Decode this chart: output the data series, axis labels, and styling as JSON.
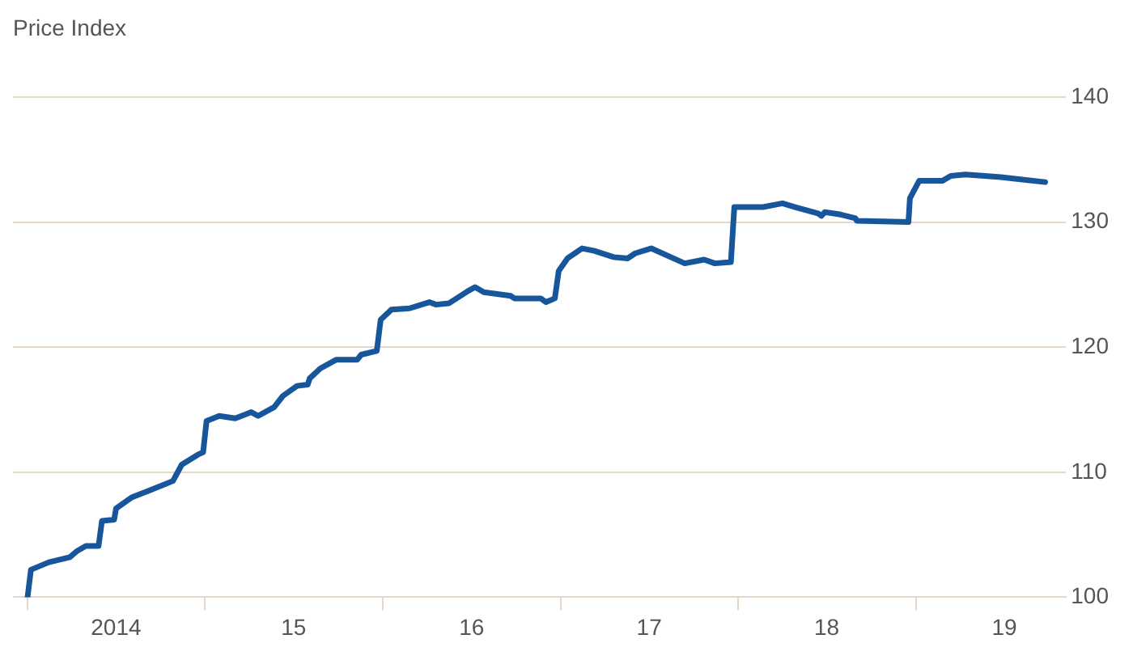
{
  "chart_data": {
    "type": "line",
    "title": "Price Index",
    "x": [
      "2014-01-01",
      "2014-01-08",
      "2014-02-14",
      "2014-03-29",
      "2014-04-13",
      "2014-05-01",
      "2014-05-27",
      "2014-06-03",
      "2014-06-28",
      "2014-07-02",
      "2014-08-04",
      "2014-09-06",
      "2014-10-02",
      "2014-10-27",
      "2014-11-14",
      "2014-12-17",
      "2014-12-28",
      "2015-01-04",
      "2015-01-30",
      "2015-03-04",
      "2015-04-06",
      "2015-04-20",
      "2015-05-23",
      "2015-06-10",
      "2015-07-09",
      "2015-07-31",
      "2015-08-04",
      "2015-08-26",
      "2015-09-28",
      "2015-11-10",
      "2015-11-18",
      "2015-12-20",
      "2015-12-28",
      "2016-01-19",
      "2016-02-25",
      "2016-04-06",
      "2016-04-20",
      "2016-05-16",
      "2016-06-25",
      "2016-07-09",
      "2016-07-27",
      "2016-09-20",
      "2016-09-28",
      "2016-11-21",
      "2016-12-02",
      "2016-12-20",
      "2016-12-28",
      "2017-01-15",
      "2017-02-14",
      "2017-03-11",
      "2017-04-20",
      "2017-05-19",
      "2017-06-03",
      "2017-07-06",
      "2017-09-13",
      "2017-10-23",
      "2017-11-14",
      "2017-12-17",
      "2017-12-24",
      "2018-02-21",
      "2018-04-02",
      "2018-04-28",
      "2018-06-14",
      "2018-06-21",
      "2018-06-28",
      "2018-07-31",
      "2018-08-30",
      "2018-09-02",
      "2018-12-17",
      "2018-12-20",
      "2019-01-08",
      "2019-02-25",
      "2019-03-14",
      "2019-04-13",
      "2019-06-25",
      "2019-09-24"
    ],
    "series": [
      {
        "color": "#17569b",
        "values": [
          100,
          102.2,
          102.8,
          103.2,
          103.7,
          104.1,
          104.1,
          106.1,
          106.2,
          107.1,
          108,
          108.5,
          108.9,
          109.3,
          110.6,
          111.4,
          111.6,
          114.1,
          114.5,
          114.3,
          114.8,
          114.5,
          115.2,
          116.1,
          116.9,
          117,
          117.5,
          118.3,
          119,
          119,
          119.4,
          119.7,
          122.2,
          123,
          123.1,
          123.6,
          123.4,
          123.5,
          124.5,
          124.8,
          124.4,
          124.1,
          123.9,
          123.9,
          123.6,
          123.9,
          126.1,
          127.1,
          127.9,
          127.7,
          127.2,
          127.1,
          127.5,
          127.9,
          126.7,
          127,
          126.7,
          126.8,
          131.2,
          131.2,
          131.5,
          131.2,
          130.7,
          130.5,
          130.8,
          130.6,
          130.3,
          130.1,
          130,
          131.9,
          133.3,
          133.3,
          133.7,
          133.8,
          133.6,
          133.2
        ]
      }
    ],
    "xlim": [
      "2013-12-02",
      "2019-11-06"
    ],
    "xticks": [
      {
        "value": "2014-01-01",
        "label": null
      },
      {
        "value": "2014-07-02",
        "label": "2014"
      },
      {
        "value": "2015-01-01",
        "label": null
      },
      {
        "value": "2015-07-02",
        "label": "15"
      },
      {
        "value": "2016-01-01",
        "label": null
      },
      {
        "value": "2016-07-02",
        "label": "16"
      },
      {
        "value": "2017-01-01",
        "label": null
      },
      {
        "value": "2017-07-02",
        "label": "17"
      },
      {
        "value": "2018-01-01",
        "label": null
      },
      {
        "value": "2018-07-02",
        "label": "18"
      },
      {
        "value": "2019-01-01",
        "label": null
      },
      {
        "value": "2019-07-02",
        "label": "19"
      }
    ],
    "ylim": [
      100,
      140
    ],
    "yticks": [
      100,
      110,
      120,
      130,
      140
    ],
    "grid": "y",
    "legend": false,
    "marker": "none",
    "line_style": "solid"
  }
}
